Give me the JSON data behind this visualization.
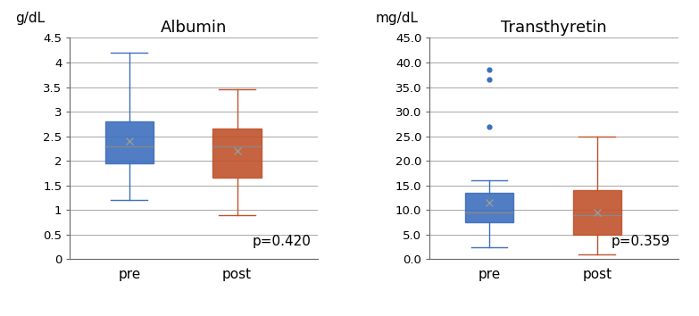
{
  "albumin": {
    "title": "Albumin",
    "ylabel": "g/dL",
    "ylim": [
      0,
      4.5
    ],
    "yticks": [
      0,
      0.5,
      1.0,
      1.5,
      2.0,
      2.5,
      3.0,
      3.5,
      4.0,
      4.5
    ],
    "ytick_labels": [
      "0",
      "0.5",
      "1",
      "1.5",
      "2",
      "2.5",
      "3",
      "3.5",
      "4",
      "4.5"
    ],
    "pvalue": "p=0.420",
    "pre": {
      "q1": 1.95,
      "median": 2.3,
      "q3": 2.8,
      "whisker_low": 1.2,
      "whisker_high": 4.2,
      "mean": 2.4,
      "outliers": [],
      "color": "#3d6fbe"
    },
    "post": {
      "q1": 1.65,
      "median": 2.3,
      "q3": 2.65,
      "whisker_low": 0.9,
      "whisker_high": 3.45,
      "mean": 2.2,
      "outliers": [],
      "color": "#c0522b"
    }
  },
  "transthyretin": {
    "title": "Transthyretin",
    "ylabel": "mg/dL",
    "ylim": [
      0,
      45
    ],
    "yticks": [
      0.0,
      5.0,
      10.0,
      15.0,
      20.0,
      25.0,
      30.0,
      35.0,
      40.0,
      45.0
    ],
    "ytick_labels": [
      "0.0",
      "5.0",
      "10.0",
      "15.0",
      "20.0",
      "25.0",
      "30.0",
      "35.0",
      "40.0",
      "45.0"
    ],
    "pvalue": "p=0.359",
    "pre": {
      "q1": 7.5,
      "median": 9.5,
      "q3": 13.5,
      "whisker_low": 2.5,
      "whisker_high": 16.0,
      "mean": 11.5,
      "outliers": [
        27.0,
        36.5,
        38.5
      ],
      "color": "#3d6fbe"
    },
    "post": {
      "q1": 5.0,
      "median": 9.0,
      "q3": 14.0,
      "whisker_low": 1.0,
      "whisker_high": 25.0,
      "mean": 9.5,
      "outliers": [],
      "color": "#c0522b"
    }
  },
  "xlabel_pre": "pre",
  "xlabel_post": "post",
  "box_width": 0.45,
  "background_color": "#ffffff",
  "grid_color": "#999999",
  "title_fontsize": 13,
  "tick_fontsize": 9.5,
  "label_fontsize": 11,
  "pvalue_fontsize": 11
}
